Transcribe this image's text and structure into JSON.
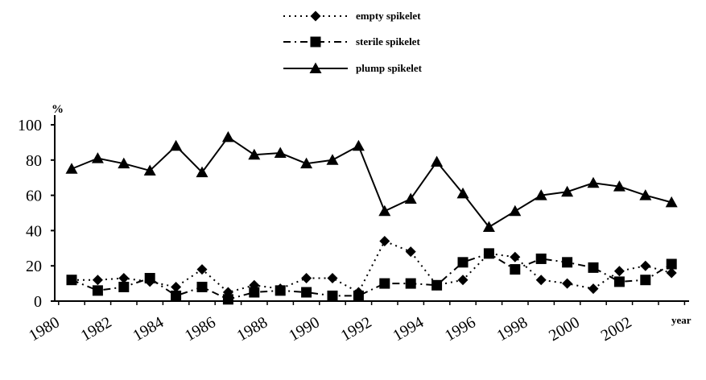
{
  "chart_data": {
    "type": "line",
    "ylabel": "%",
    "xlabel": "year",
    "ylim": [
      0,
      100
    ],
    "yticks": [
      0,
      20,
      40,
      60,
      80,
      100
    ],
    "x": [
      1981,
      1982,
      1983,
      1984,
      1985,
      1986,
      1987,
      1988,
      1989,
      1990,
      1991,
      1992,
      1993,
      1994,
      1995,
      1996,
      1997,
      1998,
      1999,
      2000,
      2001,
      2002,
      2003,
      2004
    ],
    "xtick_labels": [
      "1980",
      "1982",
      "1984",
      "1986",
      "1988",
      "1990",
      "1992",
      "1994",
      "1996",
      "1998",
      "2000",
      "2002"
    ],
    "legend_position": "top-center",
    "series": [
      {
        "name": "empty spikelet",
        "style": "dotted",
        "marker": "diamond",
        "values": [
          12,
          12,
          13,
          11,
          8,
          18,
          5,
          9,
          7,
          13,
          13,
          5,
          34,
          28,
          9,
          12,
          27,
          25,
          12,
          10,
          7,
          17,
          20,
          16
        ]
      },
      {
        "name": "sterile spikelet",
        "style": "dashdot",
        "marker": "square",
        "values": [
          12,
          6,
          8,
          13,
          3,
          8,
          1,
          5,
          6,
          5,
          3,
          3,
          10,
          10,
          9,
          22,
          27,
          18,
          24,
          22,
          19,
          11,
          12,
          21
        ]
      },
      {
        "name": "plump spikelet",
        "style": "solid",
        "marker": "triangle",
        "values": [
          75,
          81,
          78,
          74,
          88,
          73,
          93,
          83,
          84,
          78,
          80,
          88,
          51,
          58,
          79,
          61,
          42,
          51,
          60,
          62,
          67,
          65,
          60,
          56
        ]
      }
    ]
  }
}
